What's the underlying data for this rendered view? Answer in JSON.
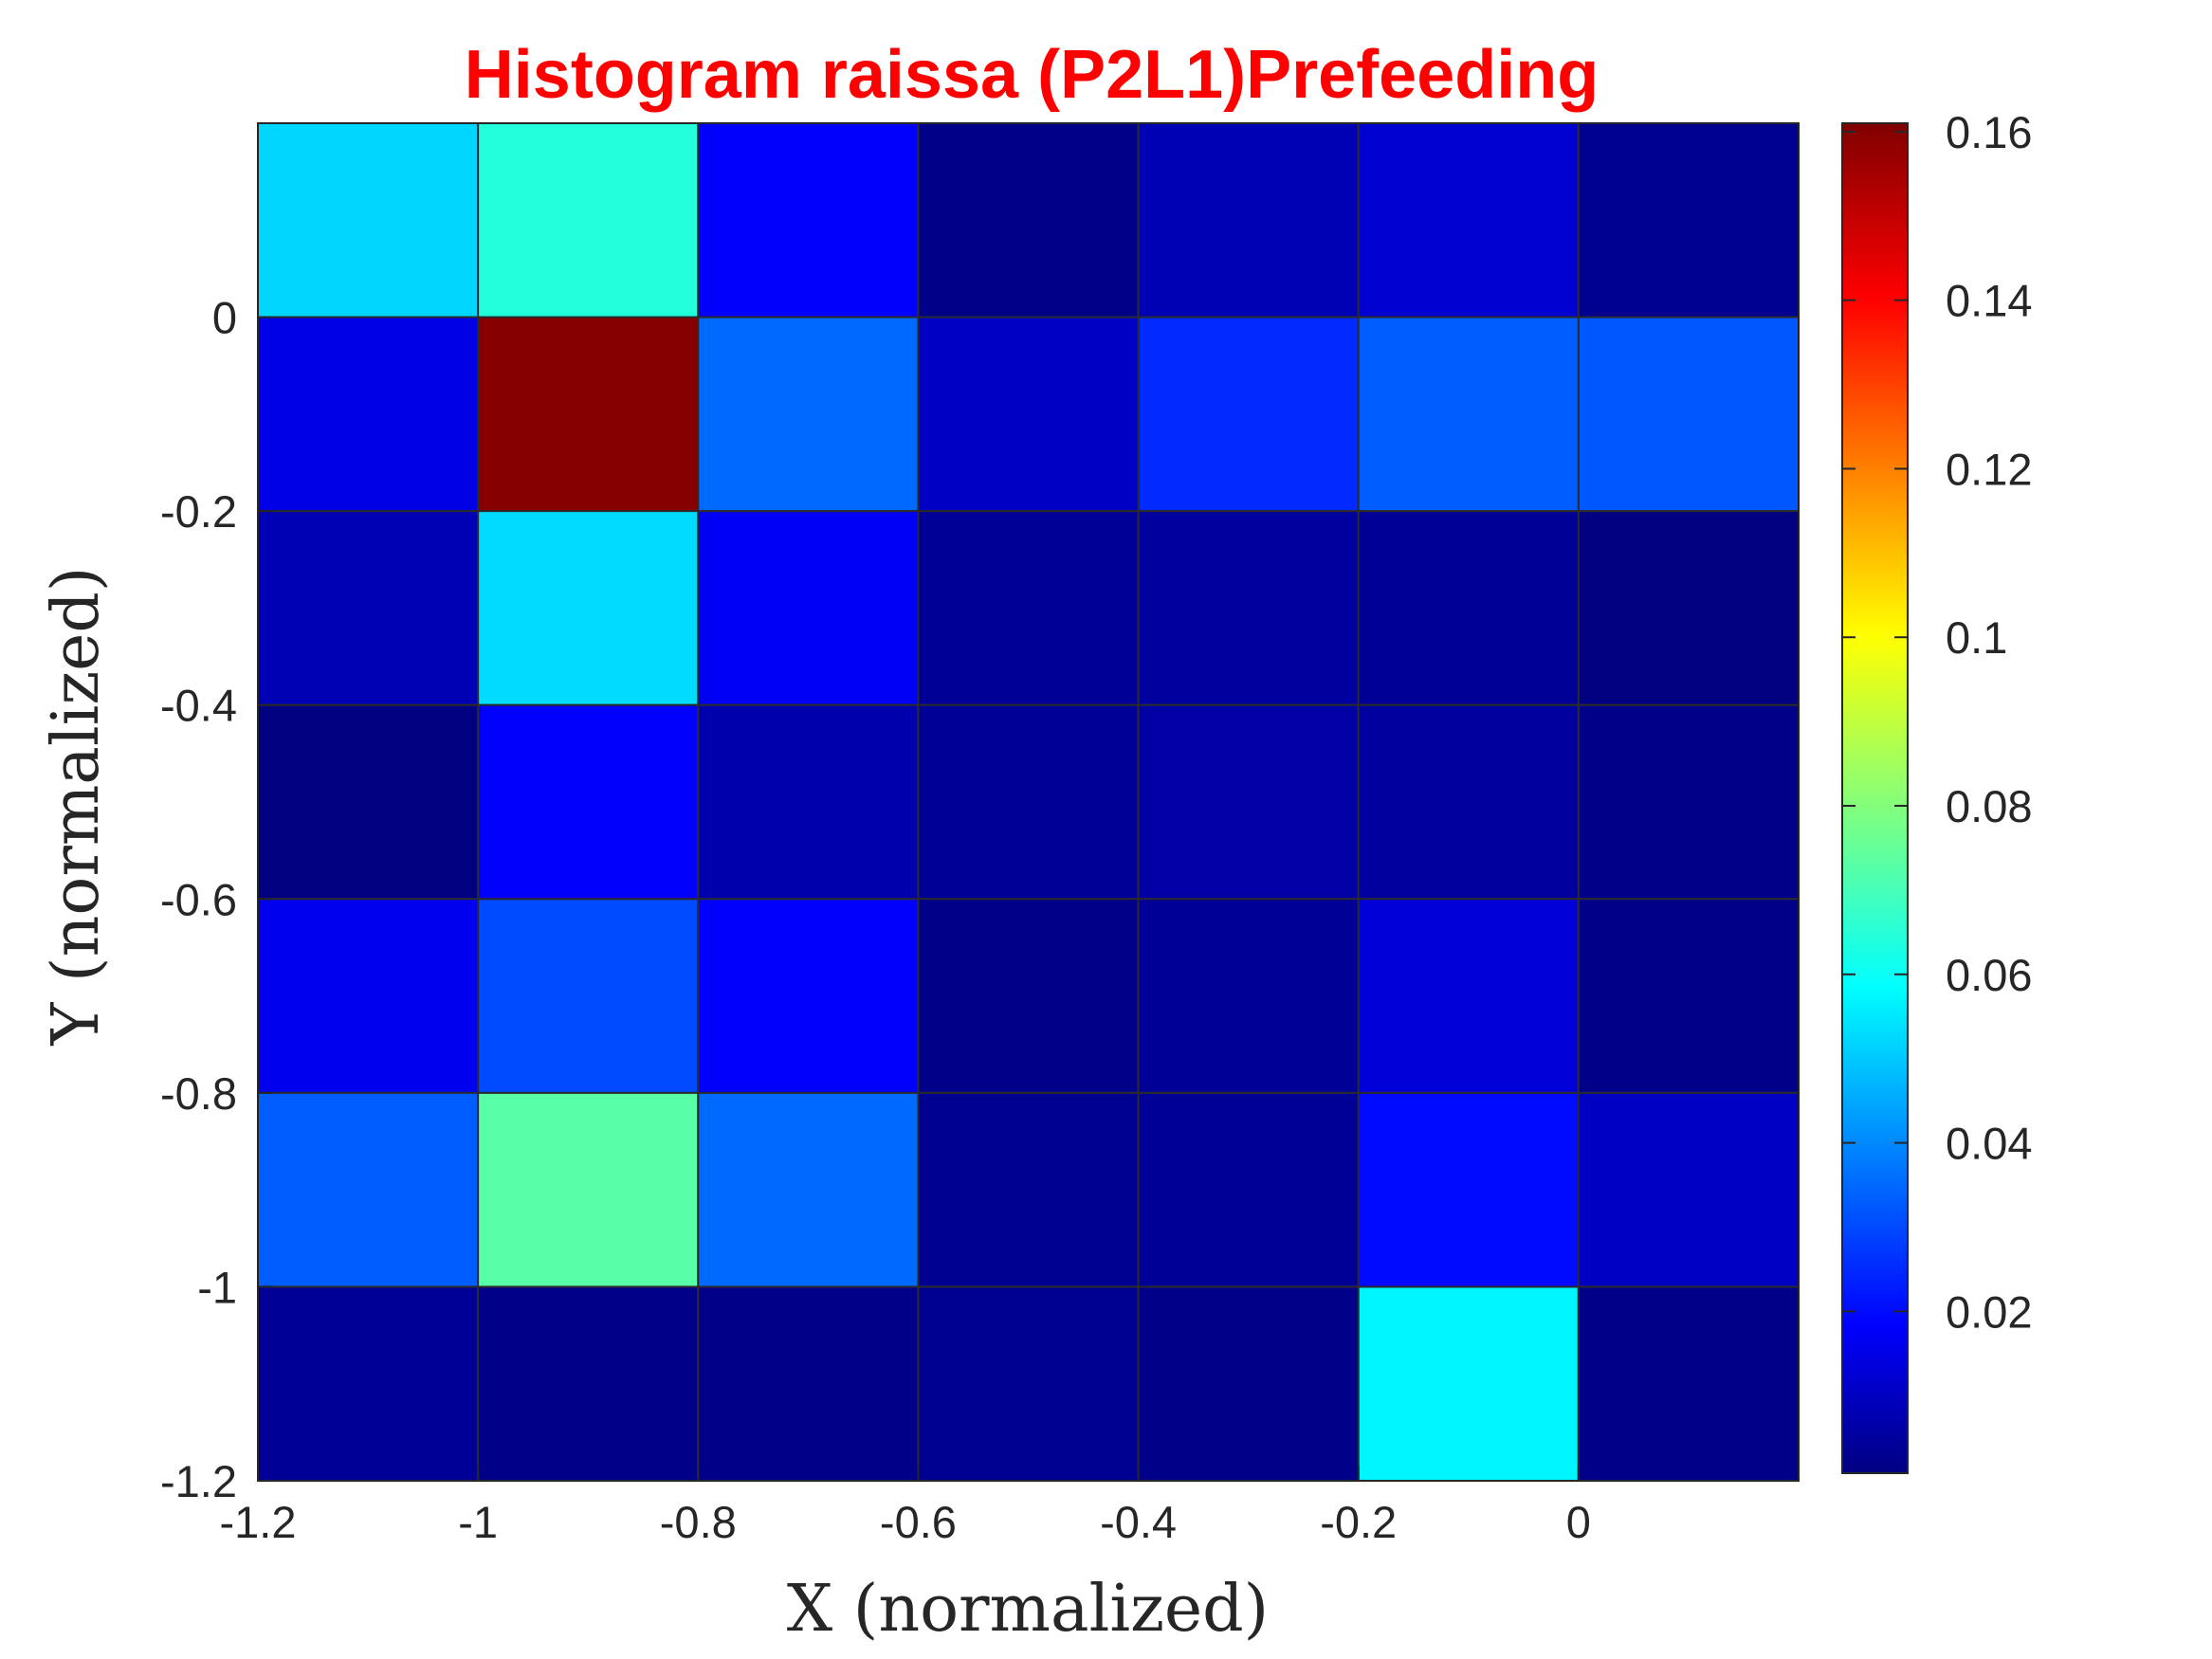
{
  "chart_data": {
    "type": "heatmap",
    "title": "Histogram raissa (P2L1)Prefeeding",
    "title_color": "#ff0000",
    "xlabel": "X (normalized)",
    "ylabel": "Y (normalized)",
    "colormap": "jet",
    "x_bin_edges": [
      -1.2,
      -1.0,
      -0.8,
      -0.6,
      -0.4,
      -0.2,
      0.0,
      0.2
    ],
    "y_bin_edges": [
      0.2,
      0.0,
      -0.2,
      -0.4,
      -0.6,
      -0.8,
      -1.0,
      -1.2
    ],
    "xlim": [
      -1.2,
      0.2
    ],
    "ylim": [
      -1.2,
      0.2
    ],
    "xticks": [
      -1.2,
      -1,
      -0.8,
      -0.6,
      -0.4,
      -0.2,
      0
    ],
    "xtick_labels": [
      "-1.2",
      "-1",
      "-0.8",
      "-0.6",
      "-0.4",
      "-0.2",
      "0"
    ],
    "yticks": [
      0,
      -0.2,
      -0.4,
      -0.6,
      -0.8,
      -1,
      -1.2
    ],
    "ytick_labels": [
      "0",
      "-0.2",
      "-0.4",
      "-0.6",
      "-0.8",
      "-1",
      "-1.2"
    ],
    "values": [
      [
        0.052,
        0.064,
        0.018,
        0.002,
        0.008,
        0.012,
        0.003
      ],
      [
        0.015,
        0.16,
        0.035,
        0.01,
        0.025,
        0.033,
        0.032
      ],
      [
        0.008,
        0.053,
        0.017,
        0.004,
        0.005,
        0.004,
        0.001
      ],
      [
        0.001,
        0.018,
        0.007,
        0.004,
        0.006,
        0.005,
        0.002
      ],
      [
        0.016,
        0.03,
        0.018,
        0.002,
        0.004,
        0.013,
        0.002
      ],
      [
        0.033,
        0.073,
        0.035,
        0.003,
        0.004,
        0.02,
        0.01
      ],
      [
        0.004,
        0.002,
        0.002,
        0.003,
        0.002,
        0.057,
        0.002
      ]
    ],
    "colorbar": {
      "range": [
        0.0008,
        0.161
      ],
      "ticks": [
        0.02,
        0.04,
        0.06,
        0.08,
        0.1,
        0.12,
        0.14,
        0.16
      ],
      "tick_labels": [
        "0.02",
        "0.04",
        "0.06",
        "0.08",
        "0.1",
        "0.12",
        "0.14",
        "0.16"
      ],
      "location": "right"
    },
    "grid": false,
    "edge_color": "#2b2b2b"
  }
}
